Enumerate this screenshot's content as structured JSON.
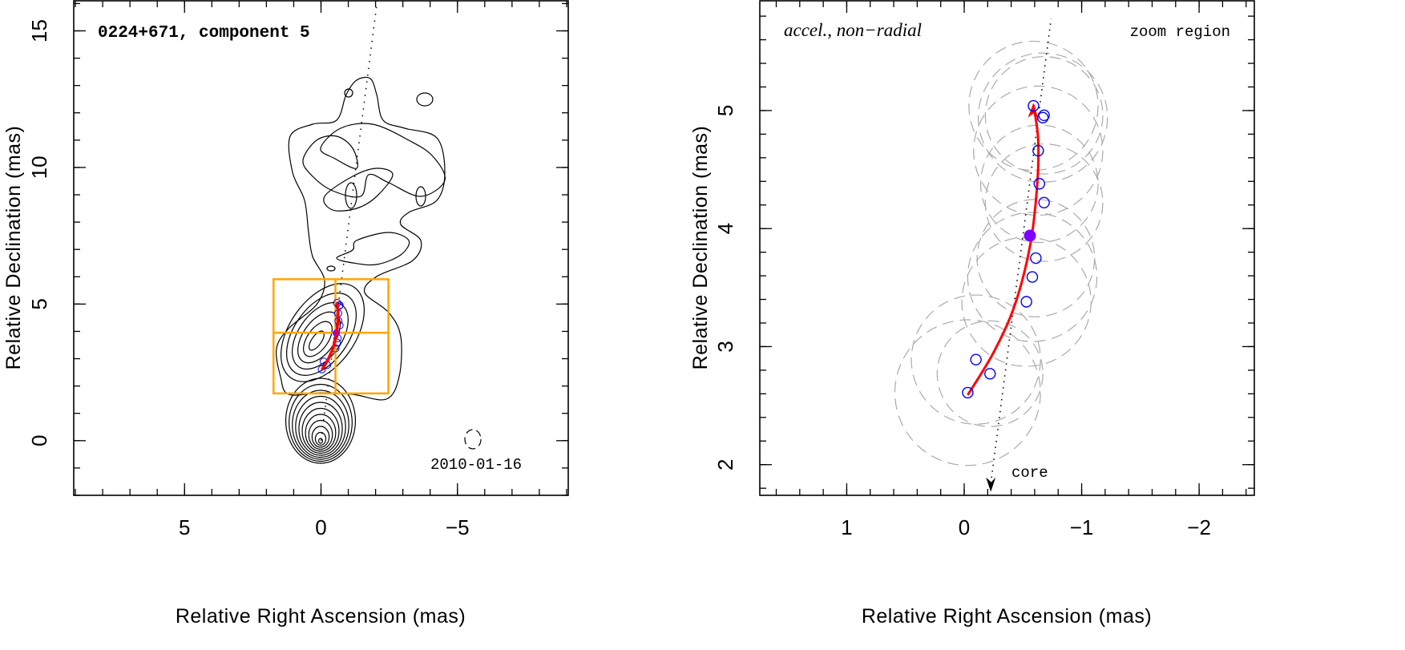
{
  "chart_data": [
    {
      "type": "scatter",
      "title": "0224+671, component 5",
      "annotation": "2010-01-16",
      "xlabel": "Relative Right Ascension (mas)",
      "ylabel": "Relative Declination (mas)",
      "xlim": [
        9.06,
        -9.06
      ],
      "ylim": [
        -2.0,
        16.1
      ],
      "xticks": [
        5,
        0,
        -5
      ],
      "yticks": [
        0,
        5,
        10,
        15
      ],
      "xtick_labels": [
        "5",
        "0",
        "−5"
      ],
      "ytick_labels": [
        "0",
        "5",
        "10",
        "15"
      ],
      "zoom_box": {
        "ra": [
          1.74,
          -2.47
        ],
        "dec": [
          1.73,
          5.91
        ],
        "cross": [
          -0.53,
          3.95
        ]
      },
      "colors": {
        "zoom_box": "#ffa500",
        "track": "#ff0000",
        "components": "#0000ff",
        "reference": "#8000ff"
      }
    },
    {
      "type": "scatter",
      "title": "accel., non−radial",
      "annotation": "zoom region",
      "core_label": "core",
      "xlabel": "Relative Right Ascension (mas)",
      "ylabel": "Relative Declination (mas)",
      "xlim": [
        1.74,
        -2.47
      ],
      "ylim": [
        1.74,
        5.93
      ],
      "xticks": [
        1,
        0,
        -1,
        -2
      ],
      "yticks": [
        2,
        3,
        4,
        5
      ],
      "xtick_labels": [
        "1",
        "0",
        "−1",
        "−2"
      ],
      "ytick_labels": [
        "2",
        "3",
        "4",
        "5"
      ],
      "components": [
        {
          "ra": -0.03,
          "dec": 2.61,
          "size": 0.62
        },
        {
          "ra": -0.1,
          "dec": 2.89,
          "size": 0.55
        },
        {
          "ra": -0.22,
          "dec": 2.77,
          "size": 0.45
        },
        {
          "ra": -0.53,
          "dec": 3.38,
          "size": 0.55
        },
        {
          "ra": -0.58,
          "dec": 3.59,
          "size": 0.55
        },
        {
          "ra": -0.61,
          "dec": 3.75,
          "size": 0.5
        },
        {
          "ra": -0.68,
          "dec": 4.22,
          "size": 0.5
        },
        {
          "ra": -0.64,
          "dec": 4.38,
          "size": 0.5
        },
        {
          "ra": -0.63,
          "dec": 4.66,
          "size": 0.55
        },
        {
          "ra": -0.67,
          "dec": 4.94,
          "size": 0.55
        },
        {
          "ra": -0.68,
          "dec": 4.96,
          "size": 0.5
        },
        {
          "ra": -0.59,
          "dec": 5.04,
          "size": 0.55
        }
      ],
      "reference_point": {
        "ra": -0.56,
        "dec": 3.94
      },
      "track": [
        {
          "ra": -0.03,
          "dec": 2.59
        },
        {
          "ra": -0.25,
          "dec": 2.95
        },
        {
          "ra": -0.43,
          "dec": 3.35
        },
        {
          "ra": -0.56,
          "dec": 3.85
        },
        {
          "ra": -0.62,
          "dec": 4.35
        },
        {
          "ra": -0.63,
          "dec": 4.75
        },
        {
          "ra": -0.59,
          "dec": 5.05
        }
      ],
      "jet_axis_slope": -0.128,
      "colors": {
        "track": "#ff0000",
        "components": "#0000ff",
        "reference": "#8000ff",
        "component_size": "#aaaaaa"
      }
    }
  ]
}
